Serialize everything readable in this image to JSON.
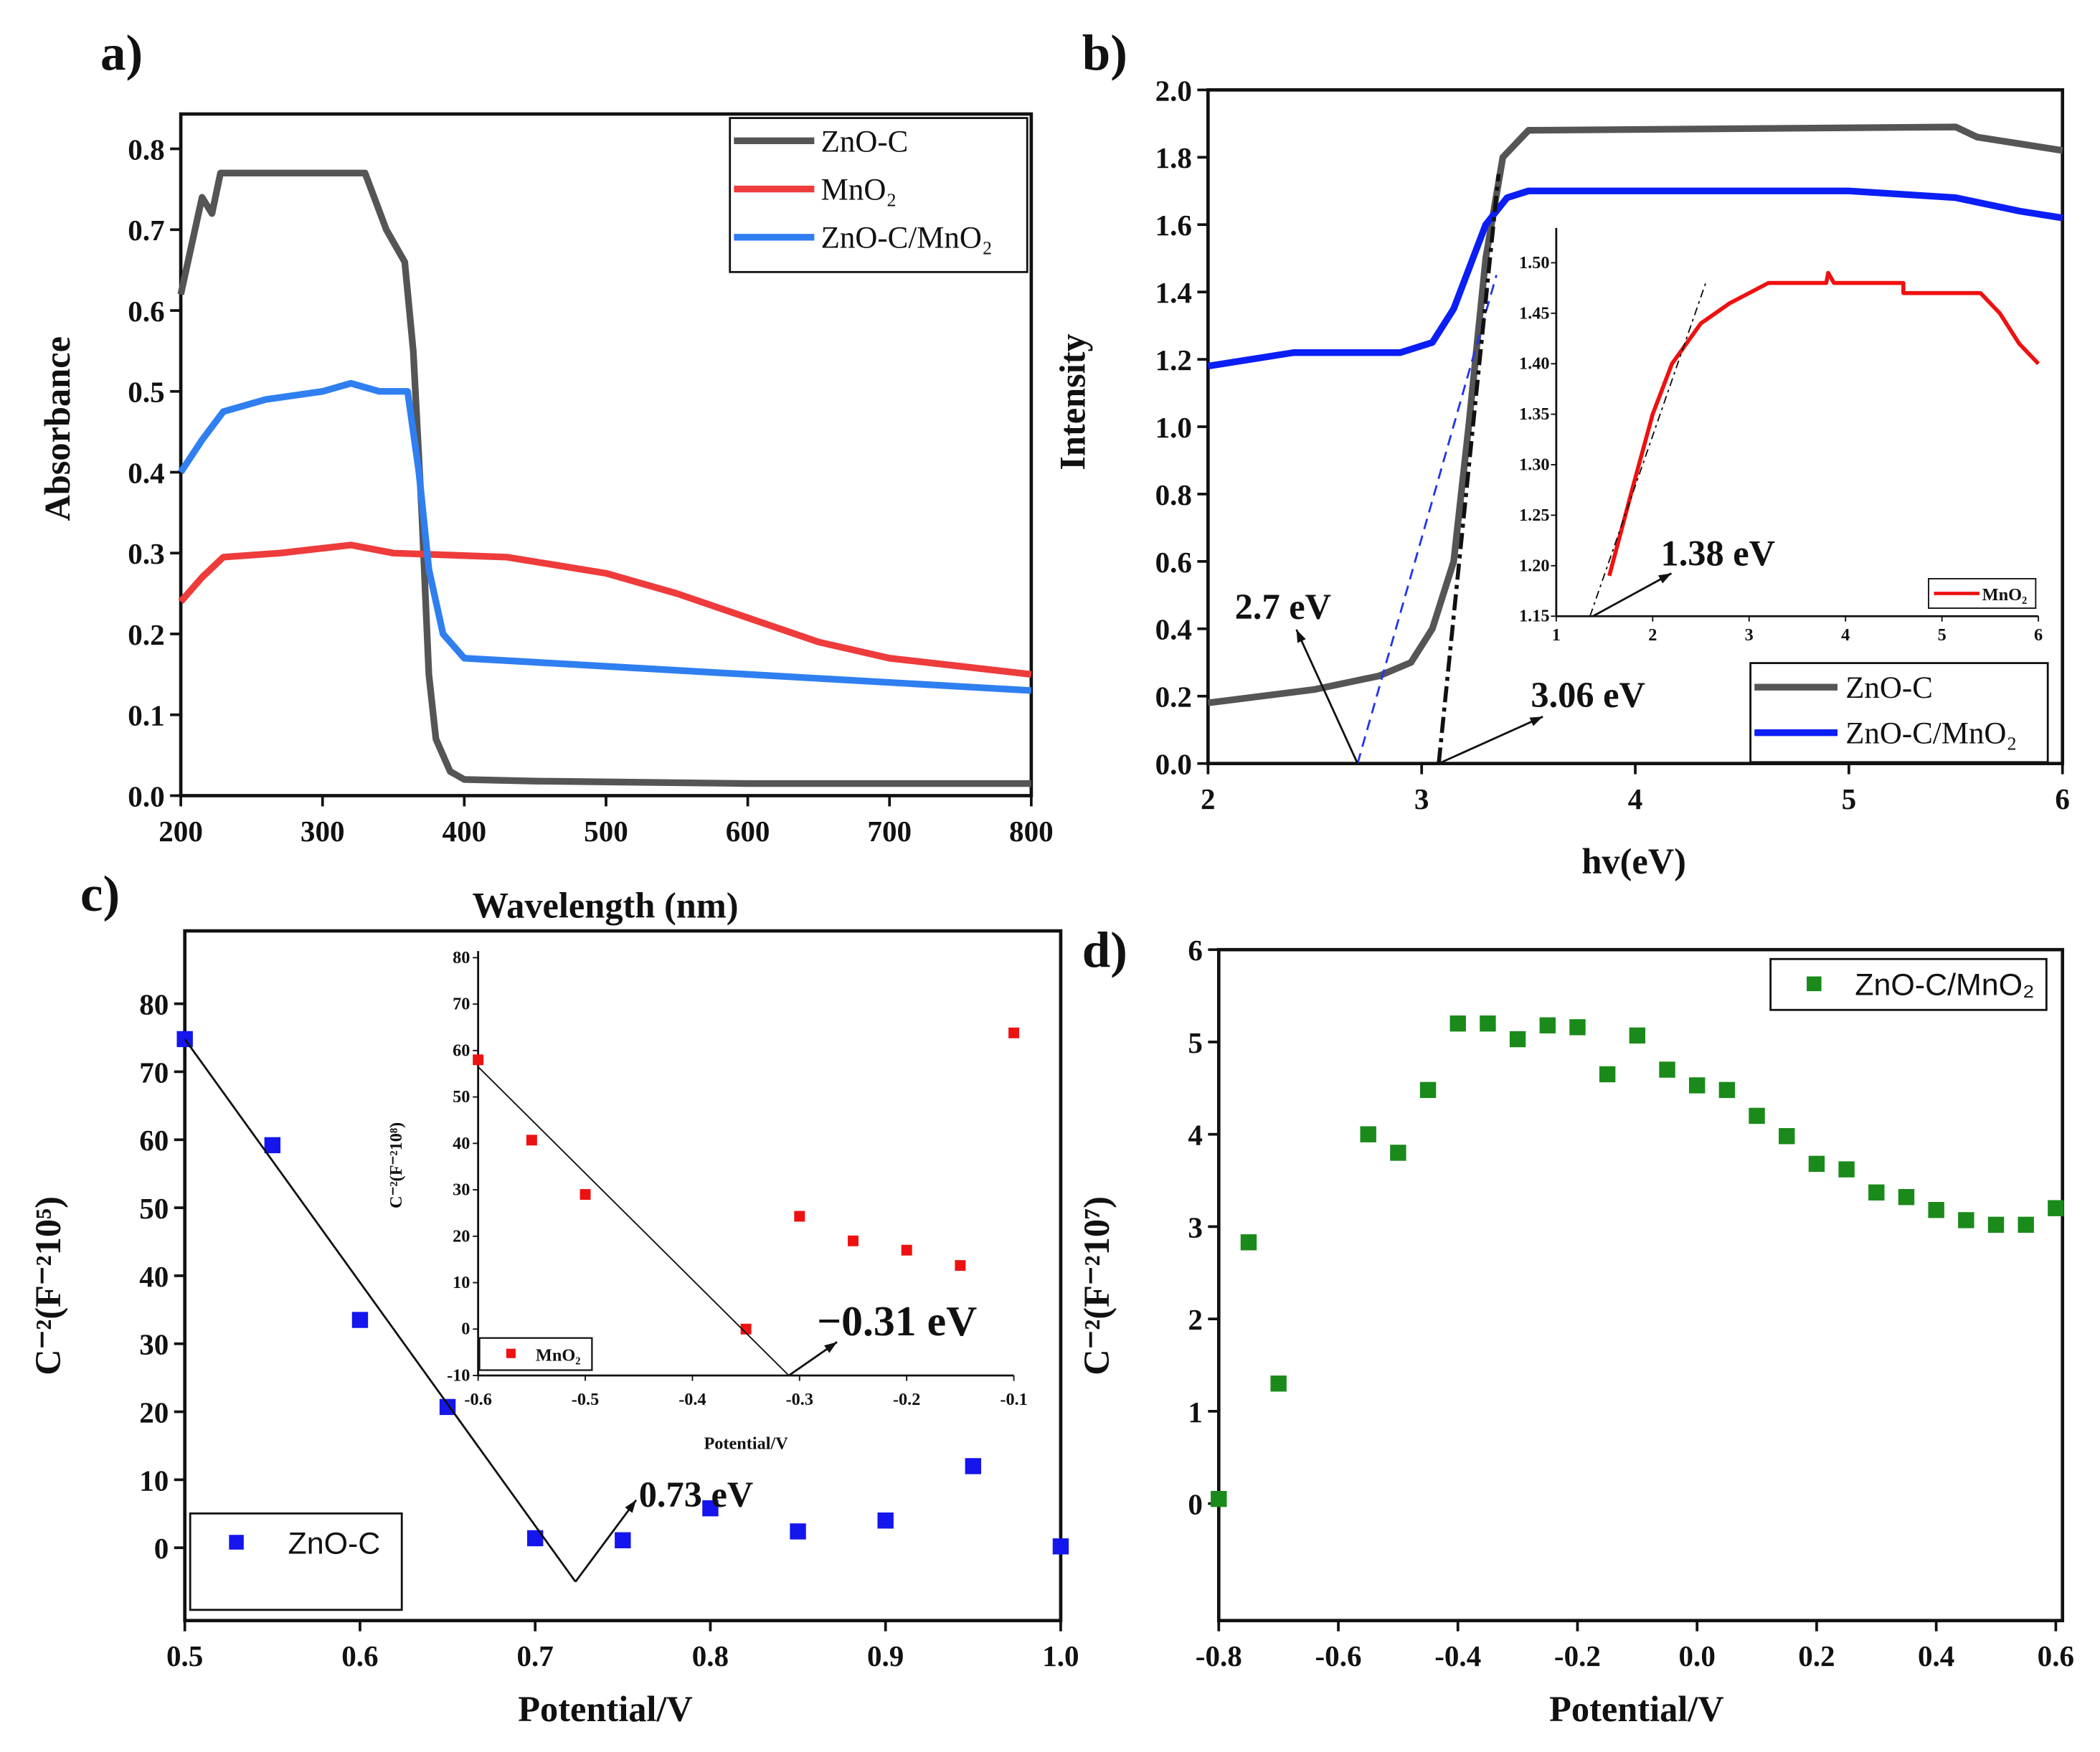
{
  "chart_data": [
    {
      "id": "a",
      "panel_label": "a)",
      "type": "line",
      "xlabel": "Wavelength (nm)",
      "ylabel": "Absorbance",
      "xlim": [
        200,
        800
      ],
      "ylim": [
        0,
        0.8
      ],
      "xticks": [
        200,
        300,
        400,
        500,
        600,
        700,
        800
      ],
      "xtick_labels": [
        "200",
        "300",
        "400",
        "500",
        "600",
        "700",
        "800"
      ],
      "yticks": [
        0,
        0.1,
        0.2,
        0.3,
        0.4,
        0.5,
        0.6,
        0.7,
        0.8
      ],
      "ytick_labels": [
        "0.0",
        "0.1",
        "0.2",
        "0.3",
        "0.4",
        "0.5",
        "0.6",
        "0.7",
        "0.8"
      ],
      "legend_position": "top-right",
      "series": [
        {
          "name": "ZnO-C",
          "color": "#555555",
          "points": [
            [
              200,
              0.62
            ],
            [
              205,
              0.66
            ],
            [
              210,
              0.7
            ],
            [
              215,
              0.74
            ],
            [
              222,
              0.72
            ],
            [
              228,
              0.77
            ],
            [
              330,
              0.77
            ],
            [
              345,
              0.7
            ],
            [
              358,
              0.66
            ],
            [
              364,
              0.55
            ],
            [
              370,
              0.35
            ],
            [
              375,
              0.15
            ],
            [
              380,
              0.07
            ],
            [
              390,
              0.03
            ],
            [
              400,
              0.02
            ],
            [
              450,
              0.018
            ],
            [
              600,
              0.015
            ],
            [
              800,
              0.015
            ]
          ]
        },
        {
          "name": "MnO₂",
          "color": "#ee3b3b",
          "points": [
            [
              200,
              0.24
            ],
            [
              215,
              0.27
            ],
            [
              230,
              0.295
            ],
            [
              270,
              0.3
            ],
            [
              320,
              0.31
            ],
            [
              350,
              0.3
            ],
            [
              430,
              0.295
            ],
            [
              500,
              0.275
            ],
            [
              550,
              0.25
            ],
            [
              600,
              0.22
            ],
            [
              650,
              0.19
            ],
            [
              700,
              0.17
            ],
            [
              750,
              0.16
            ],
            [
              800,
              0.15
            ]
          ]
        },
        {
          "name": "ZnO-C/MnO₂",
          "color": "#2f7ff0",
          "points": [
            [
              200,
              0.4
            ],
            [
              215,
              0.44
            ],
            [
              230,
              0.475
            ],
            [
              260,
              0.49
            ],
            [
              300,
              0.5
            ],
            [
              320,
              0.51
            ],
            [
              340,
              0.5
            ],
            [
              360,
              0.5
            ],
            [
              368,
              0.4
            ],
            [
              375,
              0.28
            ],
            [
              385,
              0.2
            ],
            [
              400,
              0.17
            ],
            [
              450,
              0.165
            ],
            [
              600,
              0.15
            ],
            [
              700,
              0.14
            ],
            [
              800,
              0.13
            ]
          ]
        }
      ]
    },
    {
      "id": "b",
      "panel_label": "b)",
      "type": "line",
      "xlabel": "hv(eV)",
      "ylabel": "Intensity",
      "xlim": [
        2,
        6
      ],
      "ylim": [
        0,
        2.0
      ],
      "xticks": [
        2,
        3,
        4,
        5,
        6
      ],
      "xtick_labels": [
        "2",
        "3",
        "4",
        "5",
        "6"
      ],
      "yticks": [
        0,
        0.2,
        0.4,
        0.6,
        0.8,
        1.0,
        1.2,
        1.4,
        1.6,
        1.8,
        2.0
      ],
      "ytick_labels": [
        "0.0",
        "0.2",
        "0.4",
        "0.6",
        "0.8",
        "1.0",
        "1.2",
        "1.4",
        "1.6",
        "1.8",
        "2.0"
      ],
      "legend_position": "bottom-right",
      "series": [
        {
          "name": "ZnO-C",
          "color": "#555555",
          "points": [
            [
              2,
              0.18
            ],
            [
              2.5,
              0.22
            ],
            [
              2.8,
              0.26
            ],
            [
              2.95,
              0.3
            ],
            [
              3.05,
              0.4
            ],
            [
              3.15,
              0.6
            ],
            [
              3.22,
              1.0
            ],
            [
              3.3,
              1.5
            ],
            [
              3.38,
              1.8
            ],
            [
              3.5,
              1.88
            ],
            [
              5.5,
              1.89
            ],
            [
              5.6,
              1.86
            ],
            [
              6,
              1.82
            ]
          ]
        },
        {
          "name": "ZnO-C/MnO₂",
          "color": "#0a1ef5",
          "points": [
            [
              2,
              1.18
            ],
            [
              2.4,
              1.22
            ],
            [
              2.9,
              1.22
            ],
            [
              3.05,
              1.25
            ],
            [
              3.15,
              1.35
            ],
            [
              3.3,
              1.6
            ],
            [
              3.4,
              1.68
            ],
            [
              3.5,
              1.7
            ],
            [
              5.0,
              1.7
            ],
            [
              5.5,
              1.68
            ],
            [
              5.8,
              1.64
            ],
            [
              6,
              1.62
            ]
          ]
        }
      ],
      "tangents": [
        {
          "color": "#2233ee",
          "style": "dash",
          "from": [
            2.7,
            0
          ],
          "to": [
            3.35,
            1.45
          ]
        },
        {
          "color": "#111111",
          "style": "dashdot",
          "from": [
            3.08,
            0
          ],
          "to": [
            3.36,
            1.75
          ]
        }
      ],
      "annotations": [
        "2.7 eV",
        "3.06 eV"
      ],
      "inset": {
        "xlim": [
          1,
          6
        ],
        "ylim": [
          1.15,
          1.52
        ],
        "xticks": [
          1,
          2,
          3,
          4,
          5,
          6
        ],
        "xtick_labels": [
          "1",
          "2",
          "3",
          "4",
          "5",
          "6"
        ],
        "yticks": [
          1.15,
          1.2,
          1.25,
          1.3,
          1.35,
          1.4,
          1.45,
          1.5
        ],
        "ytick_labels": [
          "1.15",
          "1.20",
          "1.25",
          "1.30",
          "1.35",
          "1.40",
          "1.45",
          "1.50"
        ],
        "series": [
          {
            "name": "MnO₂",
            "color": "#ee1111",
            "points": [
              [
                1.55,
                1.19
              ],
              [
                1.8,
                1.28
              ],
              [
                2.0,
                1.35
              ],
              [
                2.2,
                1.4
              ],
              [
                2.5,
                1.44
              ],
              [
                2.8,
                1.46
              ],
              [
                3.2,
                1.48
              ],
              [
                3.8,
                1.48
              ],
              [
                3.82,
                1.49
              ],
              [
                3.88,
                1.48
              ],
              [
                4.6,
                1.48
              ],
              [
                4.6,
                1.47
              ],
              [
                5.4,
                1.47
              ],
              [
                5.6,
                1.45
              ],
              [
                5.8,
                1.42
              ],
              [
                6,
                1.4
              ]
            ]
          }
        ],
        "tangent": {
          "from": [
            1.35,
            1.15
          ],
          "to": [
            2.55,
            1.48
          ]
        },
        "annotation": "1.38 eV"
      }
    },
    {
      "id": "c",
      "panel_label": "c)",
      "type": "scatter",
      "xlabel": "Potential/V",
      "ylabel": "C⁻²(F⁻²10⁵)",
      "xlim": [
        0.5,
        1.0
      ],
      "ylim": [
        -5,
        85
      ],
      "xticks": [
        0.5,
        0.6,
        0.7,
        0.8,
        0.9,
        1.0
      ],
      "xtick_labels": [
        "0.5",
        "0.6",
        "0.7",
        "0.8",
        "0.9",
        "1.0"
      ],
      "yticks": [
        0,
        10,
        20,
        30,
        40,
        50,
        60,
        70,
        80
      ],
      "ytick_labels": [
        "0",
        "10",
        "20",
        "30",
        "40",
        "50",
        "60",
        "70",
        "80"
      ],
      "legend_position": "bottom-left",
      "series": [
        {
          "name": "ZnO-C",
          "color": "#1515ee",
          "x": [
            0.5,
            0.55,
            0.6,
            0.65,
            0.7,
            0.75,
            0.8,
            0.85,
            0.9,
            0.95,
            1.0
          ],
          "y": [
            74.8,
            59.2,
            33.5,
            20.7,
            1.4,
            1.1,
            5.8,
            2.4,
            4.0,
            12.0,
            0.2
          ]
        }
      ],
      "fit_line": {
        "from": [
          0.5,
          74.8
        ],
        "to": [
          0.723,
          -5
        ]
      },
      "annotation": "0.73 eV",
      "inset": {
        "xlabel": "Potential/V",
        "ylabel": "C⁻²(F⁻²10⁸)",
        "xlim": [
          -0.6,
          -0.1
        ],
        "ylim": [
          -10,
          80
        ],
        "xticks": [
          -0.6,
          -0.5,
          -0.4,
          -0.3,
          -0.2,
          -0.1
        ],
        "xtick_labels": [
          "-0.6",
          "-0.5",
          "-0.4",
          "-0.3",
          "-0.2",
          "-0.1"
        ],
        "yticks": [
          -10,
          0,
          10,
          20,
          30,
          40,
          50,
          60,
          70,
          80
        ],
        "ytick_labels": [
          "-10",
          "0",
          "10",
          "20",
          "30",
          "40",
          "50",
          "60",
          "70",
          "80"
        ],
        "series": [
          {
            "name": "MnO₂",
            "color": "#ee1111",
            "x": [
              -0.6,
              -0.55,
              -0.5,
              -0.35,
              -0.3,
              -0.25,
              -0.2,
              -0.15,
              -0.1
            ],
            "y": [
              58,
              40.7,
              29,
              0,
              24.3,
              19,
              17,
              13.7,
              63.8
            ]
          }
        ],
        "fit_line": {
          "from": [
            -0.6,
            56.5
          ],
          "to": [
            -0.31,
            -10
          ]
        },
        "annotation": "−0.31 eV"
      }
    },
    {
      "id": "d",
      "panel_label": "d)",
      "type": "scatter",
      "xlabel": "Potential/V",
      "ylabel": "C⁻²(F⁻²10⁷)",
      "xlim": [
        -0.8,
        0.6
      ],
      "ylim": [
        -0.6,
        6
      ],
      "xticks": [
        -0.8,
        -0.6,
        -0.4,
        -0.2,
        0,
        0.2,
        0.4,
        0.6
      ],
      "xtick_labels": [
        "-0.8",
        "-0.6",
        "-0.4",
        "-0.2",
        "0.0",
        "0.2",
        "0.4",
        "0.6"
      ],
      "yticks": [
        0,
        1,
        2,
        3,
        4,
        5,
        6
      ],
      "ytick_labels": [
        "0",
        "1",
        "2",
        "3",
        "4",
        "5",
        "6"
      ],
      "legend_position": "top-right",
      "series": [
        {
          "name": "ZnO-C/MnO₂",
          "color": "#1a8a1a",
          "x": [
            -0.8,
            -0.75,
            -0.7,
            -0.55,
            -0.5,
            -0.45,
            -0.4,
            -0.35,
            -0.3,
            -0.25,
            -0.2,
            -0.15,
            -0.1,
            -0.05,
            0,
            0.05,
            0.1,
            0.15,
            0.2,
            0.25,
            0.3,
            0.35,
            0.4,
            0.45,
            0.5,
            0.55,
            0.6
          ],
          "y": [
            0.05,
            2.83,
            1.3,
            4.0,
            3.8,
            4.48,
            5.2,
            5.2,
            5.03,
            5.18,
            5.16,
            4.65,
            5.07,
            4.7,
            4.53,
            4.48,
            4.2,
            3.98,
            3.68,
            3.62,
            3.37,
            3.32,
            3.18,
            3.07,
            3.02,
            3.02,
            3.2
          ]
        }
      ]
    }
  ]
}
